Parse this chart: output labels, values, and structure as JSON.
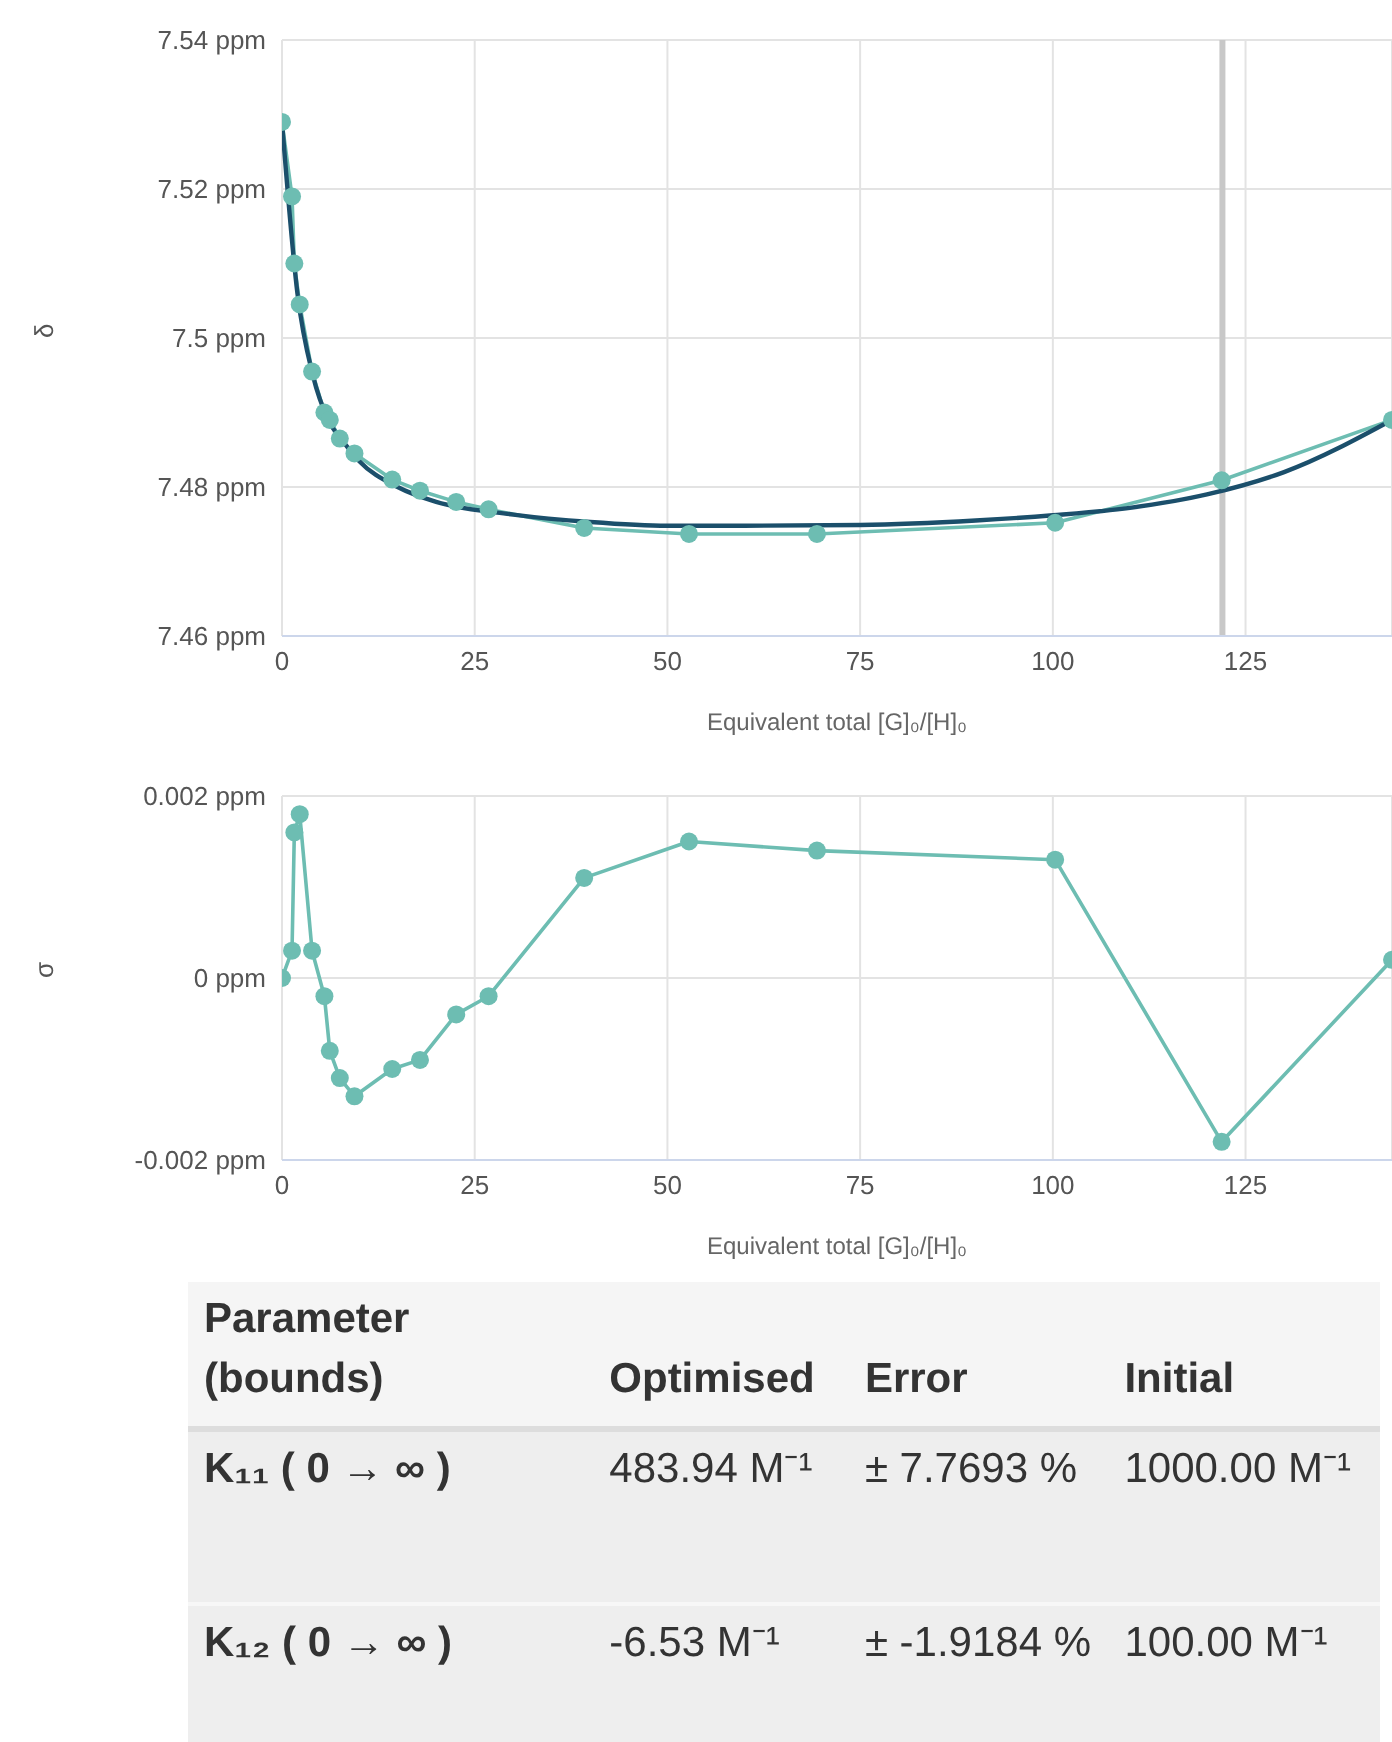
{
  "chart_data": [
    {
      "type": "line",
      "ylabel": "δ",
      "xlabel": "Equivalent total [G]₀/[H]₀",
      "xlim": [
        0,
        144
      ],
      "xticks": [
        0,
        25,
        50,
        75,
        100,
        125
      ],
      "ylim": [
        7.46,
        7.54
      ],
      "yticks": [
        {
          "value": 7.46,
          "label": "7.46 ppm"
        },
        {
          "value": 7.48,
          "label": "7.48 ppm"
        },
        {
          "value": 7.5,
          "label": "7.5 ppm"
        },
        {
          "value": 7.52,
          "label": "7.52 ppm"
        },
        {
          "value": 7.54,
          "label": "7.54 ppm"
        }
      ],
      "grid": true,
      "ref_lines": [
        {
          "axis": "x",
          "value": 122,
          "color": "#c8c8c8"
        }
      ],
      "series": [
        {
          "color": "#6dbdb2",
          "marker": "circle",
          "x": [
            0,
            1.3,
            1.6,
            2.3,
            3.9,
            5.5,
            6.2,
            7.5,
            9.4,
            14.3,
            17.9,
            22.6,
            26.8,
            39.2,
            52.8,
            69.4,
            100.3,
            121.9,
            144
          ],
          "values": [
            7.529,
            7.519,
            7.51,
            7.5045,
            7.4955,
            7.49,
            7.489,
            7.4865,
            7.4845,
            7.481,
            7.4795,
            7.478,
            7.477,
            7.4745,
            7.4737,
            7.4737,
            7.4752,
            7.4809,
            7.489
          ]
        },
        {
          "color": "#1b4f6b",
          "marker": "none",
          "x": [
            0,
            2,
            4,
            6,
            8,
            10,
            15,
            20,
            30,
            40,
            50,
            60,
            75,
            90,
            100,
            110,
            120,
            130,
            144
          ],
          "values": [
            7.529,
            7.506,
            7.495,
            7.489,
            7.486,
            7.4835,
            7.48,
            7.478,
            7.4763,
            7.4753,
            7.4748,
            7.4748,
            7.4749,
            7.4755,
            7.4762,
            7.4772,
            7.479,
            7.482,
            7.489
          ]
        }
      ]
    },
    {
      "type": "line",
      "ylabel": "σ",
      "xlabel": "Equivalent total [G]₀/[H]₀",
      "xlim": [
        0,
        144
      ],
      "xticks": [
        0,
        25,
        50,
        75,
        100,
        125
      ],
      "ylim": [
        -0.002,
        0.002
      ],
      "yticks": [
        {
          "value": -0.002,
          "label": "-0.002 ppm"
        },
        {
          "value": 0,
          "label": "0 ppm"
        },
        {
          "value": 0.002,
          "label": "0.002 ppm"
        }
      ],
      "grid": true,
      "series": [
        {
          "color": "#6dbdb2",
          "marker": "circle",
          "x": [
            0,
            1.3,
            1.6,
            2.3,
            3.9,
            5.5,
            6.2,
            7.5,
            9.4,
            14.3,
            17.9,
            22.6,
            26.8,
            39.2,
            52.8,
            69.4,
            100.3,
            121.9,
            144
          ],
          "values": [
            0,
            0.0003,
            0.0016,
            0.0018,
            0.0003,
            -0.0002,
            -0.0008,
            -0.0011,
            -0.0013,
            -0.001,
            -0.0009,
            -0.0004,
            -0.0002,
            0.0011,
            0.0015,
            0.0014,
            0.0013,
            -0.0018,
            0.0002
          ]
        }
      ]
    },
    {
      "type": "other",
      "annotations": [
        "Parameter (bounds)",
        "Optimised",
        "Error",
        "Initial",
        "K₁₁ ( 0 → ∞ )",
        "483.94 M⁻¹",
        "± 7.7693 %",
        "1000.00 M⁻¹",
        "K₁₂ ( 0 → ∞ )",
        "-6.53 M⁻¹",
        "± -1.9184 %",
        "100.00 M⁻¹"
      ]
    }
  ]
}
